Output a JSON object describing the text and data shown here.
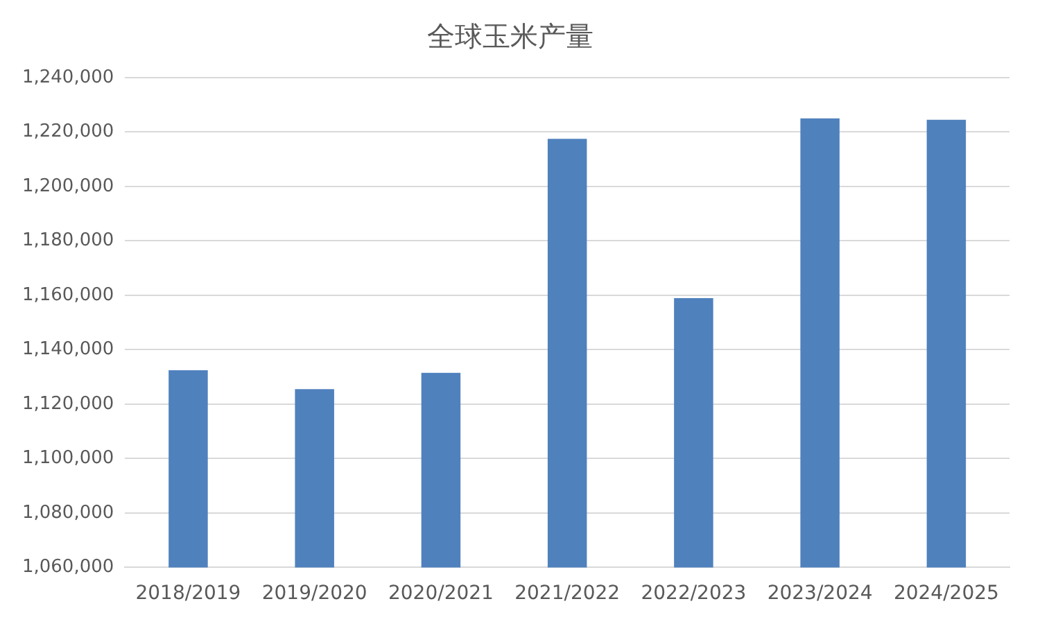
{
  "chart_data": {
    "type": "bar",
    "title": "全球玉米产量",
    "categories": [
      "2018/2019",
      "2019/2020",
      "2020/2021",
      "2021/2022",
      "2022/2023",
      "2023/2024",
      "2024/2025"
    ],
    "values": [
      1132500,
      1125500,
      1131500,
      1217500,
      1159000,
      1225000,
      1224500
    ],
    "color": "#4f81bd",
    "ylim": [
      1060000,
      1240000
    ],
    "yticks": [
      {
        "value": 1060000,
        "label": "1,060,000"
      },
      {
        "value": 1080000,
        "label": "1,080,000"
      },
      {
        "value": 1100000,
        "label": "1,100,000"
      },
      {
        "value": 1120000,
        "label": "1,120,000"
      },
      {
        "value": 1140000,
        "label": "1,140,000"
      },
      {
        "value": 1160000,
        "label": "1,160,000"
      },
      {
        "value": 1180000,
        "label": "1,180,000"
      },
      {
        "value": 1200000,
        "label": "1,200,000"
      },
      {
        "value": 1220000,
        "label": "1,220,000"
      },
      {
        "value": 1240000,
        "label": "1,240,000"
      }
    ],
    "grid": "y",
    "legend": false
  }
}
